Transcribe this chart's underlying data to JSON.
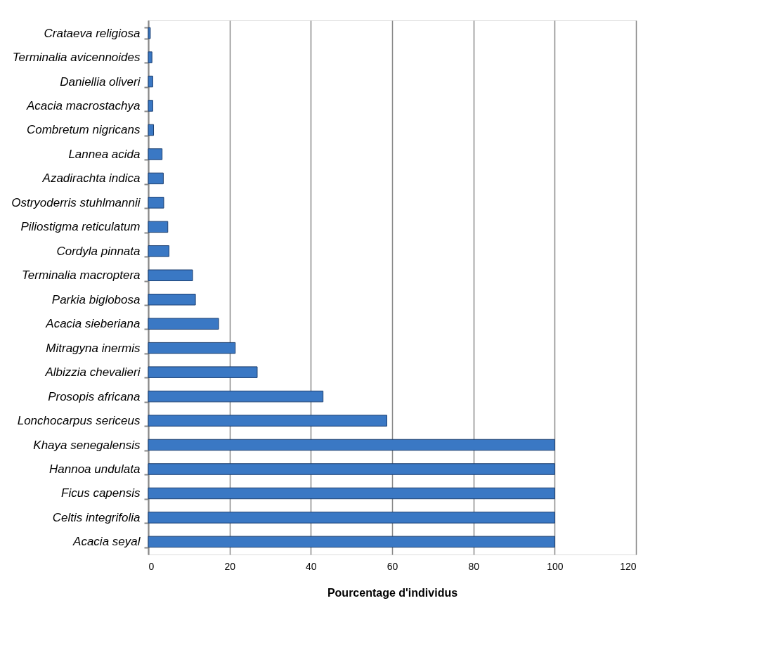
{
  "chart_data": {
    "type": "bar",
    "orientation": "horizontal",
    "xlabel": "Pourcentage d'individus",
    "categories": [
      "Crataeva religiosa",
      "Terminalia avicennoides",
      "Daniellia oliveri",
      "Acacia macrostachya",
      "Combretum nigricans",
      "Lannea acida",
      "Azadirachta indica",
      "Ostryoderris stuhlmannii",
      "Piliostigma reticulatum",
      "Cordyla pinnata",
      "Terminalia macroptera",
      "Parkia biglobosa",
      "Acacia sieberiana",
      "Mitragyna inermis",
      "Albizzia chevalieri",
      "Prosopis africana",
      "Lonchocarpus sericeus",
      "Khaya senegalensis",
      "Hannoa undulata",
      "Ficus capensis",
      "Celtis integrifolia",
      "Acacia seyal"
    ],
    "values": [
      0.5,
      0.9,
      1.1,
      1.1,
      1.3,
      3.4,
      3.7,
      3.8,
      4.8,
      5.1,
      10.9,
      11.6,
      17.3,
      21.4,
      26.8,
      43,
      58.7,
      100,
      100,
      100,
      100,
      100
    ],
    "color": "#3a78c4",
    "xlim": [
      0,
      120
    ],
    "xticks": [
      0,
      20,
      40,
      60,
      80,
      100,
      120
    ],
    "grid": "x"
  }
}
